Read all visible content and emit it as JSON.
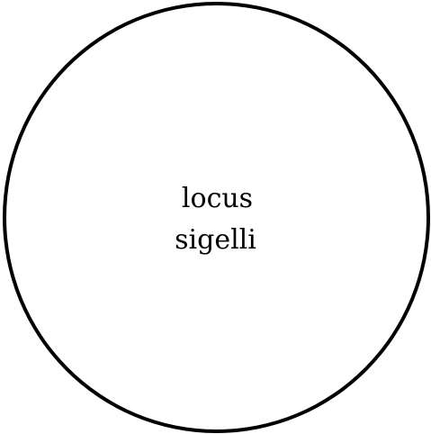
{
  "seal": {
    "line1": "locus",
    "line2": "sigelli",
    "border_color": "#000000",
    "background_color": "#ffffff"
  }
}
